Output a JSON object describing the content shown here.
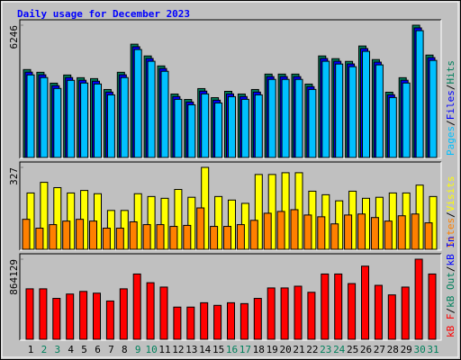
{
  "title": "Daily usage for December 2023",
  "legend_separator": "/",
  "chart_data": [
    {
      "type": "bar",
      "ylim": [
        0,
        6246
      ],
      "yticks": [
        6246
      ],
      "series": [
        {
          "name": "Hits",
          "color": "#00805C",
          "values": [
            4165,
            4038,
            3528,
            3910,
            3783,
            3740,
            3230,
            4038,
            5355,
            4803,
            4335,
            3018,
            2763,
            3273,
            2848,
            3145,
            3018,
            3230,
            3953,
            3953,
            3953,
            3485,
            4803,
            4675,
            4548,
            5270,
            4633,
            3103,
            3783,
            6246,
            4845
          ]
        },
        {
          "name": "Files",
          "color": "#0000FF",
          "values": [
            4045,
            3920,
            3410,
            3790,
            3665,
            3620,
            3110,
            3920,
            5235,
            4685,
            4215,
            2900,
            2645,
            3155,
            2730,
            3025,
            2900,
            3110,
            3835,
            3835,
            3835,
            3365,
            4685,
            4555,
            4430,
            5150,
            4515,
            2985,
            3665,
            6120,
            4725
          ]
        },
        {
          "name": "Pages",
          "color": "#00C0FF",
          "values": [
            3915,
            3790,
            3280,
            3660,
            3535,
            3490,
            2980,
            3790,
            5105,
            4555,
            4085,
            2770,
            2515,
            3025,
            2600,
            2895,
            2770,
            2980,
            3705,
            3705,
            3705,
            3235,
            4555,
            4425,
            4300,
            5020,
            4385,
            2855,
            3535,
            5990,
            4595
          ]
        }
      ]
    },
    {
      "type": "bar",
      "ylim": [
        0,
        327
      ],
      "yticks": [
        327
      ],
      "series": [
        {
          "name": "Visits",
          "color": "#FFFF00",
          "values": [
            226,
            268,
            247,
            226,
            236,
            223,
            157,
            157,
            223,
            212,
            205,
            240,
            209,
            327,
            212,
            198,
            185,
            299,
            299,
            306,
            306,
            233,
            219,
            195,
            233,
            205,
            209,
            226,
            226,
            257,
            212
          ]
        },
        {
          "name": "Sites",
          "color": "#FF8000",
          "values": [
            122,
            87,
            101,
            115,
            122,
            115,
            87,
            87,
            112,
            101,
            101,
            94,
            98,
            167,
            94,
            94,
            101,
            118,
            146,
            153,
            160,
            139,
            132,
            104,
            139,
            143,
            129,
            115,
            136,
            143,
            108
          ]
        }
      ]
    },
    {
      "type": "bar",
      "ylim": [
        0,
        864129
      ],
      "yticks": [
        864129
      ],
      "categories": [
        "1",
        "2",
        "3",
        "4",
        "5",
        "6",
        "7",
        "8",
        "9",
        "10",
        "11",
        "12",
        "13",
        "14",
        "15",
        "16",
        "17",
        "18",
        "19",
        "20",
        "21",
        "22",
        "23",
        "24",
        "25",
        "26",
        "27",
        "28",
        "29",
        "30",
        "31"
      ],
      "category_colors": [
        "#000000",
        "#00805C",
        "#00805C",
        "#000000",
        "#000000",
        "#000000",
        "#000000",
        "#000000",
        "#00805C",
        "#00805C",
        "#000000",
        "#000000",
        "#000000",
        "#000000",
        "#000000",
        "#00805C",
        "#00805C",
        "#000000",
        "#000000",
        "#000000",
        "#000000",
        "#000000",
        "#00805C",
        "#00805C",
        "#000000",
        "#000000",
        "#000000",
        "#000000",
        "#000000",
        "#00805C",
        "#00805C"
      ],
      "series": [
        {
          "name": "kB F",
          "color": "#FF0000",
          "values": [
            548200,
            548200,
            446000,
            492500,
            520300,
            501800,
            418100,
            548200,
            706200,
            613300,
            566800,
            353100,
            353100,
            399600,
            371700,
            399600,
            390300,
            446000,
            557500,
            557500,
            576100,
            511100,
            706200,
            706200,
            604000,
            789800,
            585400,
            483200,
            566800,
            864129,
            706200
          ]
        }
      ],
      "legend_extra": [
        {
          "name": "kB Out",
          "color": "#00805C"
        },
        {
          "name": "kB In",
          "color": "#0000FF"
        }
      ]
    }
  ]
}
